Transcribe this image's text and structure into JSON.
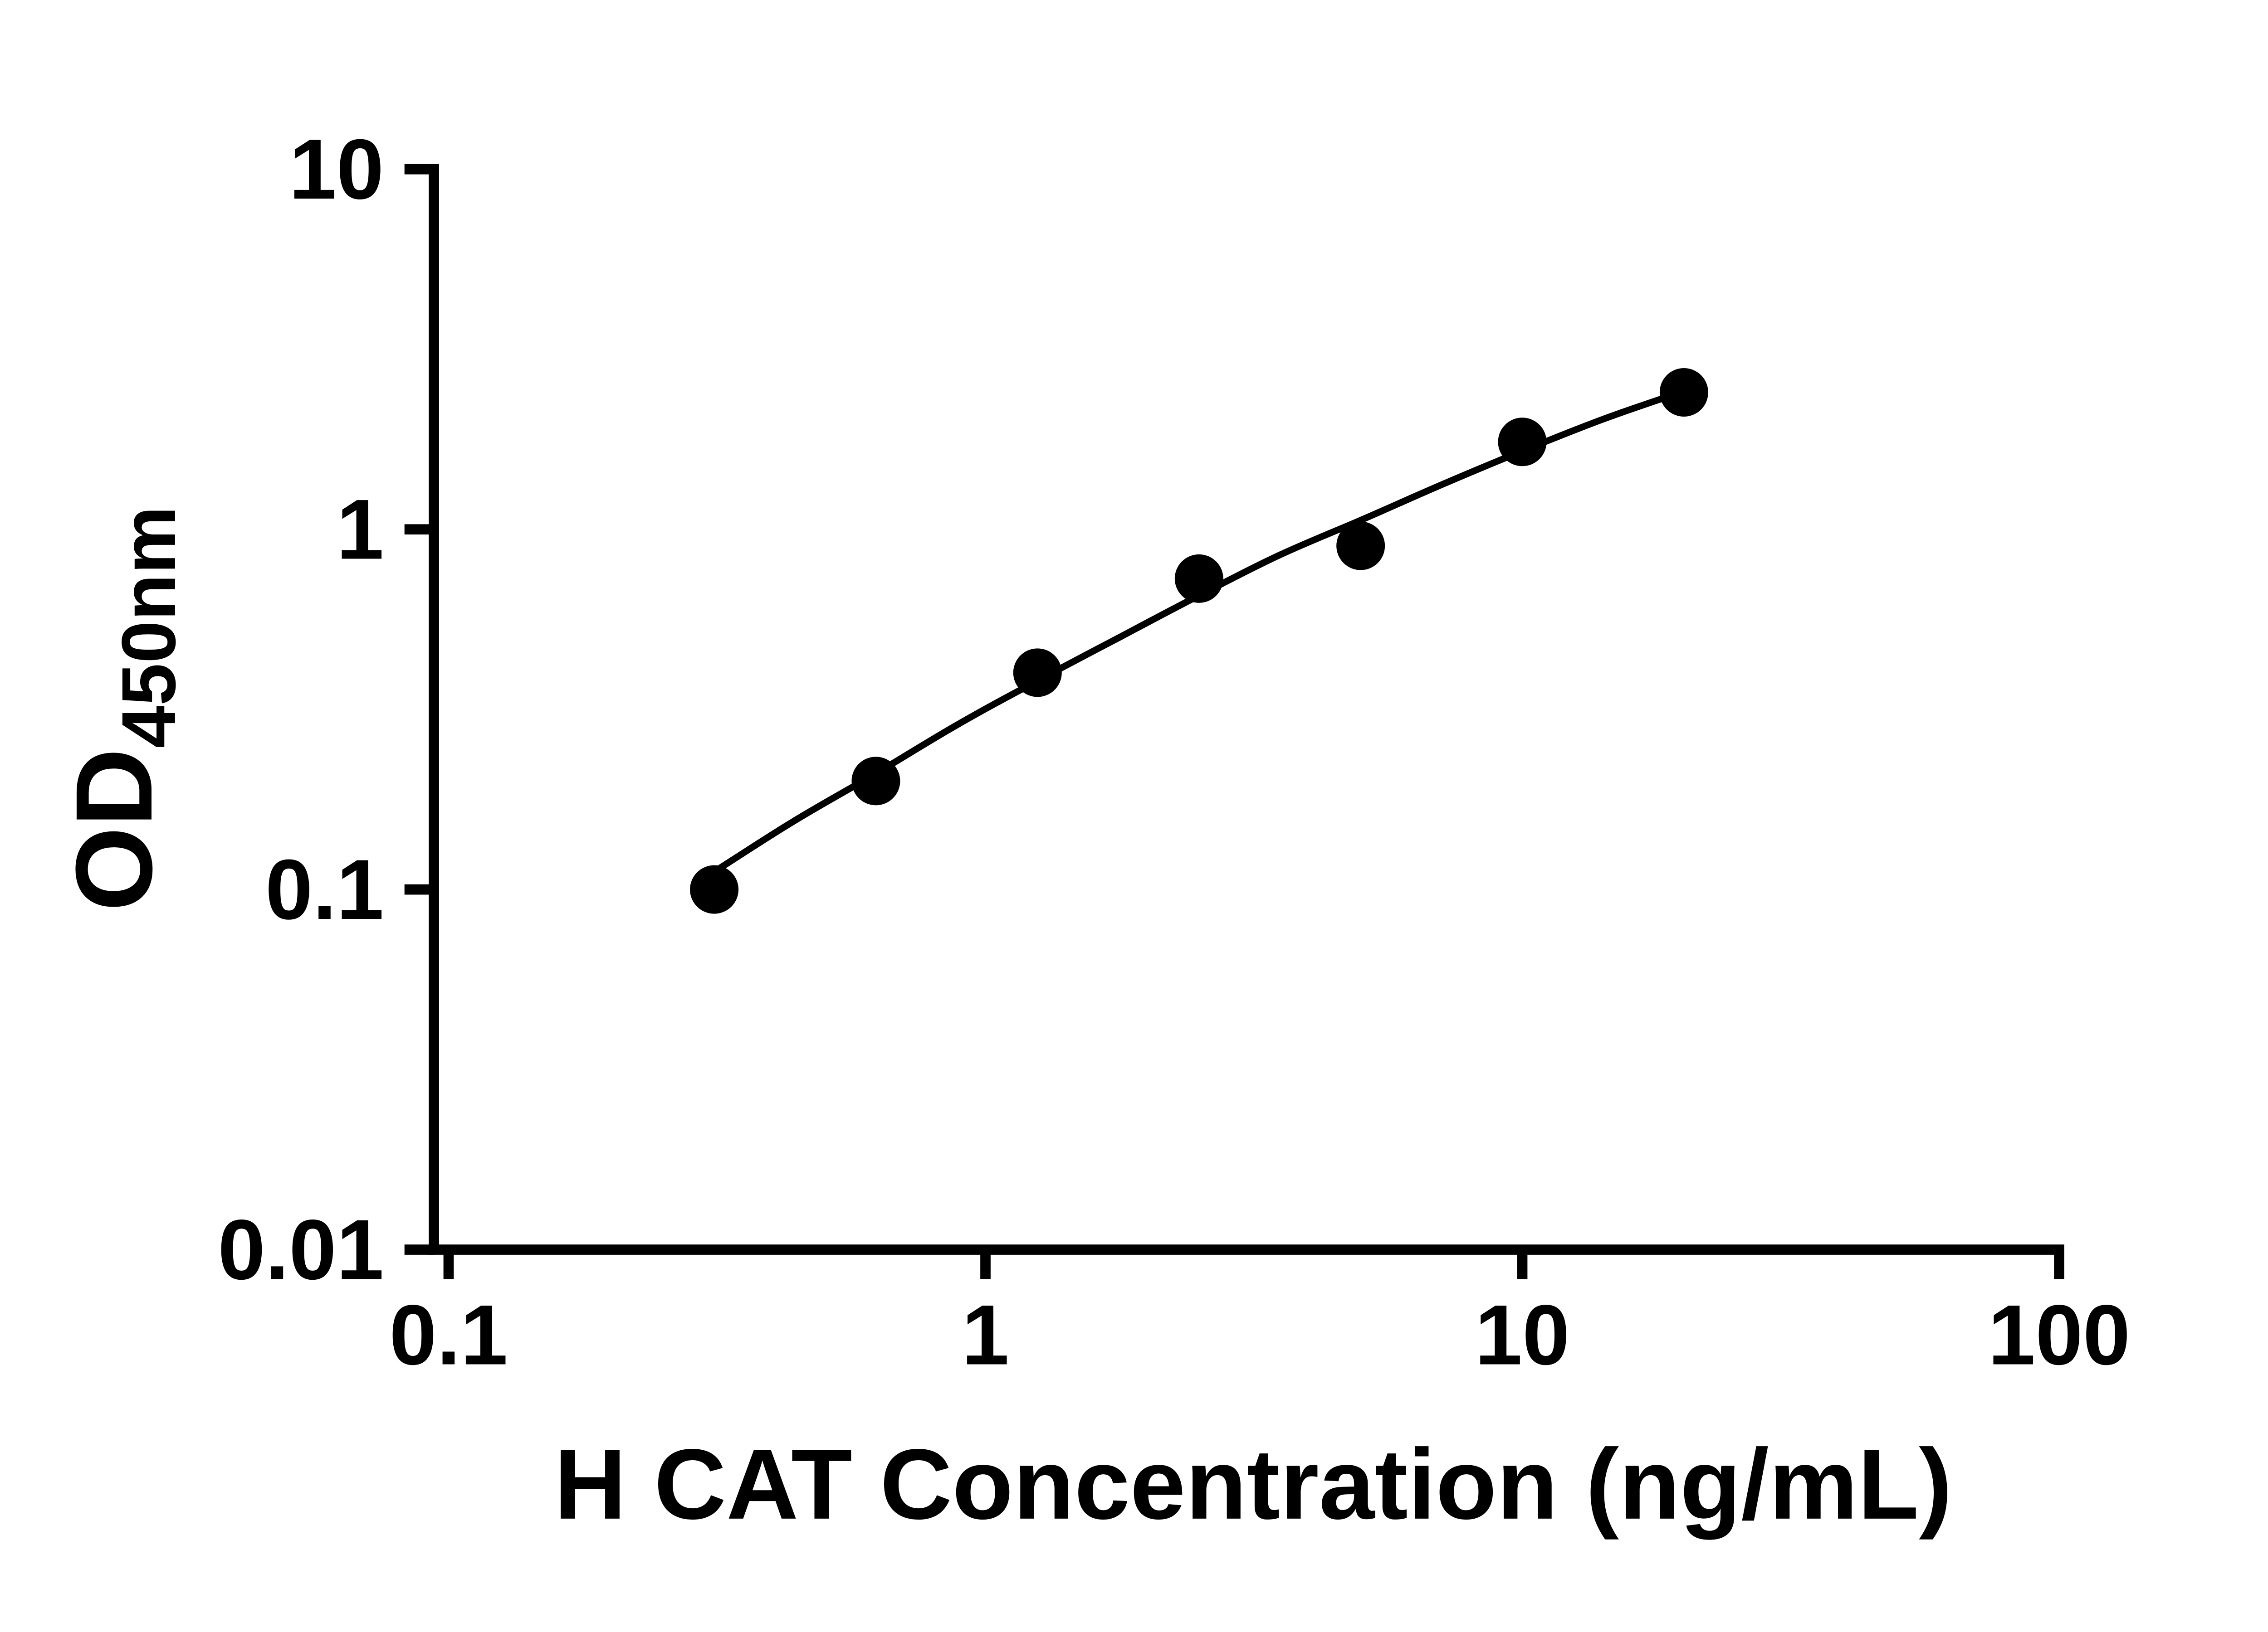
{
  "chart_data": {
    "type": "scatter",
    "title": "",
    "xlabel": "H CAT Concentration (ng/mL)",
    "ylabel_main": "OD",
    "ylabel_sub": "450nm",
    "x_scale": "log",
    "y_scale": "log",
    "xlim": [
      0.1,
      100
    ],
    "ylim": [
      0.01,
      10
    ],
    "grid": false,
    "legend": "none",
    "x_ticks": [
      {
        "value": 0.1,
        "label": "0.1"
      },
      {
        "value": 1,
        "label": "1"
      },
      {
        "value": 10,
        "label": "10"
      },
      {
        "value": 100,
        "label": "100"
      }
    ],
    "y_ticks": [
      {
        "value": 0.01,
        "label": "0.01"
      },
      {
        "value": 0.1,
        "label": "0.1"
      },
      {
        "value": 1,
        "label": "1"
      },
      {
        "value": 10,
        "label": "10"
      }
    ],
    "series": [
      {
        "name": "standard-points",
        "type": "scatter",
        "x": [
          0.3125,
          0.625,
          1.25,
          2.5,
          5,
          10,
          20
        ],
        "y": [
          0.1,
          0.2,
          0.4,
          0.73,
          0.9,
          1.75,
          2.4
        ]
      },
      {
        "name": "fit-curve",
        "type": "line",
        "x": [
          0.3125,
          0.44,
          0.625,
          0.88,
          1.25,
          1.77,
          2.5,
          3.54,
          5,
          7.07,
          10,
          14.1,
          20
        ],
        "y": [
          0.112,
          0.155,
          0.21,
          0.285,
          0.38,
          0.5,
          0.655,
          0.85,
          1.06,
          1.33,
          1.65,
          2.02,
          2.42
        ]
      }
    ],
    "marker_color": "#000000",
    "line_color": "#000000",
    "axis_color": "#000000",
    "background_color": "#ffffff"
  }
}
